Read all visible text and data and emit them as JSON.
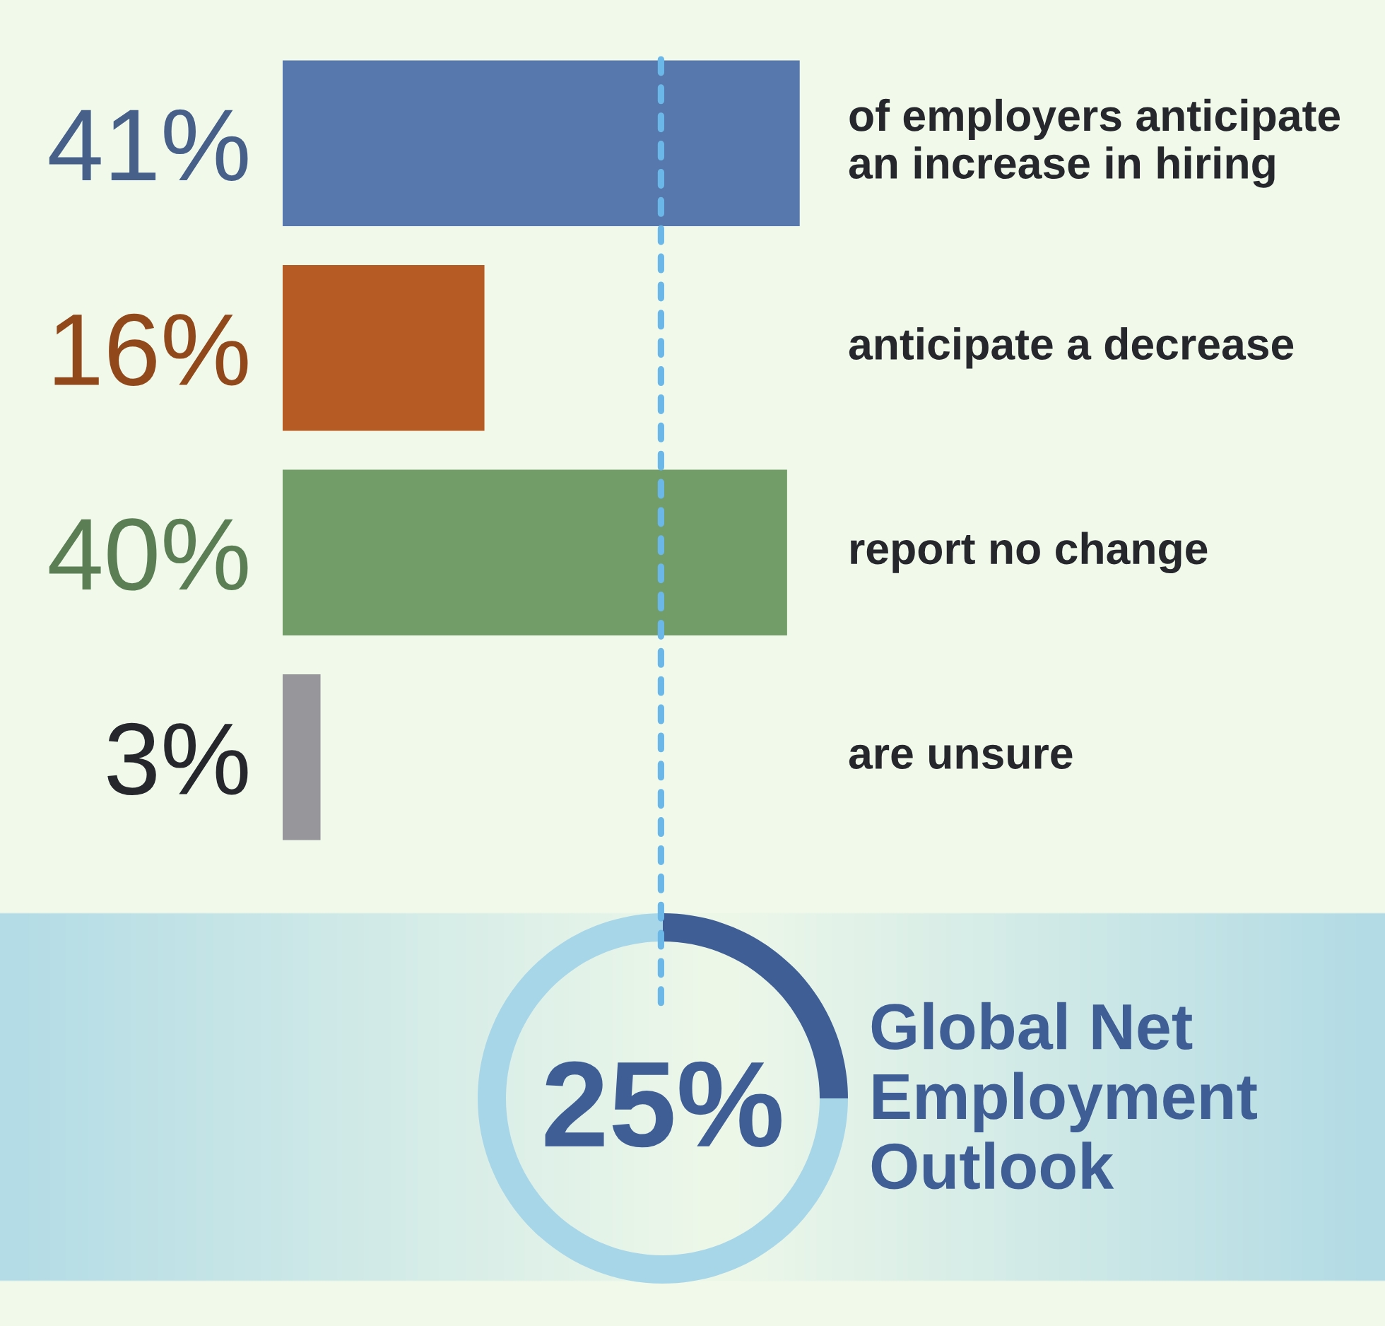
{
  "chart_data": [
    {
      "type": "bar",
      "orientation": "horizontal",
      "categories": [
        "of employers anticipate an increase in hiring",
        "anticipate a decrease",
        "report no change",
        "are unsure"
      ],
      "values": [
        41,
        16,
        40,
        3
      ],
      "colors": [
        "#5778ad",
        "#b55b23",
        "#729d69",
        "#97979b"
      ],
      "value_labels": [
        "41%",
        "16%",
        "40%",
        "3%"
      ],
      "ref_lines": [
        {
          "axis": "x",
          "value": 30,
          "color": "#6bb7e8",
          "line_style": "dashed"
        }
      ],
      "tick_labels": "y"
    },
    {
      "type": "donut",
      "title": "Global Net Employment Outlook",
      "categories": [
        null,
        null
      ],
      "values": [
        25,
        75
      ],
      "colors": [
        "#3f5e95",
        "#a8d6e9"
      ],
      "annotations": [
        "25%"
      ]
    }
  ]
}
